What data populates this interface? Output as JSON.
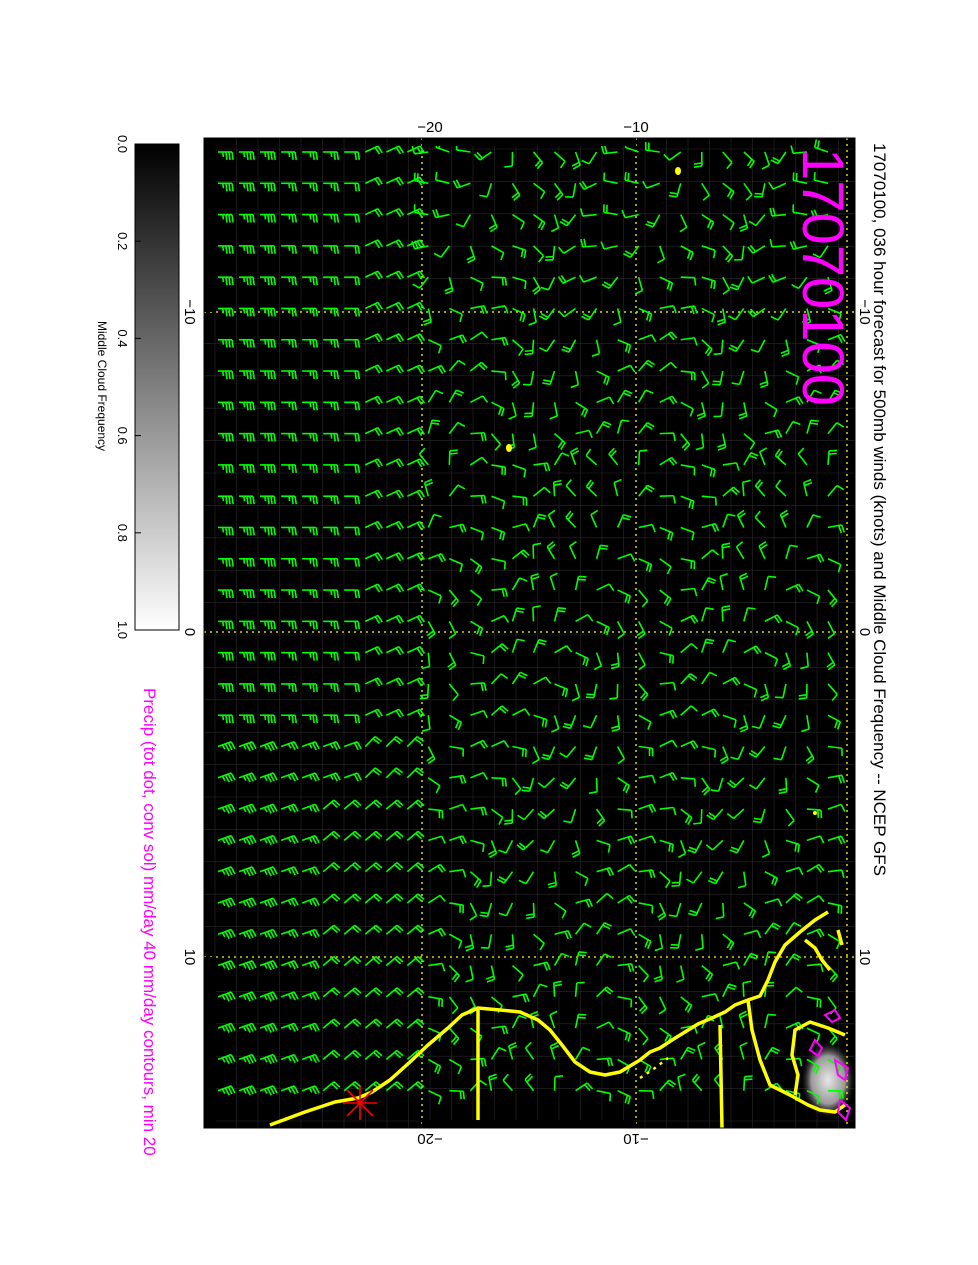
{
  "figure": {
    "title": "17070100, 036 hour forecast for 500mb winds (knots) and Middle Cloud Frequency -- NCEP GFS",
    "stamp": "17070100",
    "precip_note": "Precip (tot dot, conv sol) mm/day 40 mm/day contours, min 20",
    "colorbar_label": "Middle Cloud Frequency",
    "colorbar_ticks": [
      "0.0",
      "0.2",
      "0.4",
      "0.6",
      "0.8",
      "1.0"
    ],
    "top_ticks": [
      "−20",
      "−10"
    ],
    "bottom_ticks": [
      "−20",
      "−10"
    ],
    "left_ticks": [
      "−10",
      "0",
      "10"
    ],
    "right_ticks": [
      "−10",
      "0",
      "10"
    ]
  },
  "colors": {
    "map_bg": "#000000",
    "barb": "#00ff00",
    "grid": "#ffff00",
    "coast": "#ffff00",
    "precip": "#ff00ff",
    "title": "#000000",
    "stamp": "#ff00ff"
  }
}
